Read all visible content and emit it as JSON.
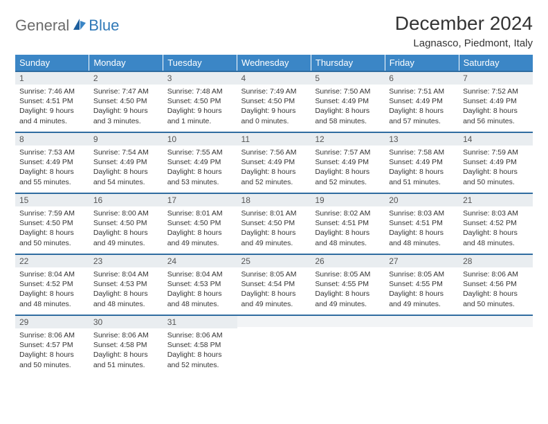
{
  "brand": {
    "general": "General",
    "blue": "Blue"
  },
  "title": "December 2024",
  "location": "Lagnasco, Piedmont, Italy",
  "colors": {
    "header_bg": "#3b86c6",
    "header_text": "#ffffff",
    "daynum_bg": "#e9edf0",
    "daynum_border": "#2f6ca0",
    "body_text": "#333333",
    "logo_blue": "#2f78b7",
    "logo_gray": "#6b6b6b"
  },
  "weekdays": [
    "Sunday",
    "Monday",
    "Tuesday",
    "Wednesday",
    "Thursday",
    "Friday",
    "Saturday"
  ],
  "weeks": [
    [
      {
        "n": "1",
        "sr": "7:46 AM",
        "ss": "4:51 PM",
        "dl": "9 hours and 4 minutes."
      },
      {
        "n": "2",
        "sr": "7:47 AM",
        "ss": "4:50 PM",
        "dl": "9 hours and 3 minutes."
      },
      {
        "n": "3",
        "sr": "7:48 AM",
        "ss": "4:50 PM",
        "dl": "9 hours and 1 minute."
      },
      {
        "n": "4",
        "sr": "7:49 AM",
        "ss": "4:50 PM",
        "dl": "9 hours and 0 minutes."
      },
      {
        "n": "5",
        "sr": "7:50 AM",
        "ss": "4:49 PM",
        "dl": "8 hours and 58 minutes."
      },
      {
        "n": "6",
        "sr": "7:51 AM",
        "ss": "4:49 PM",
        "dl": "8 hours and 57 minutes."
      },
      {
        "n": "7",
        "sr": "7:52 AM",
        "ss": "4:49 PM",
        "dl": "8 hours and 56 minutes."
      }
    ],
    [
      {
        "n": "8",
        "sr": "7:53 AM",
        "ss": "4:49 PM",
        "dl": "8 hours and 55 minutes."
      },
      {
        "n": "9",
        "sr": "7:54 AM",
        "ss": "4:49 PM",
        "dl": "8 hours and 54 minutes."
      },
      {
        "n": "10",
        "sr": "7:55 AM",
        "ss": "4:49 PM",
        "dl": "8 hours and 53 minutes."
      },
      {
        "n": "11",
        "sr": "7:56 AM",
        "ss": "4:49 PM",
        "dl": "8 hours and 52 minutes."
      },
      {
        "n": "12",
        "sr": "7:57 AM",
        "ss": "4:49 PM",
        "dl": "8 hours and 52 minutes."
      },
      {
        "n": "13",
        "sr": "7:58 AM",
        "ss": "4:49 PM",
        "dl": "8 hours and 51 minutes."
      },
      {
        "n": "14",
        "sr": "7:59 AM",
        "ss": "4:49 PM",
        "dl": "8 hours and 50 minutes."
      }
    ],
    [
      {
        "n": "15",
        "sr": "7:59 AM",
        "ss": "4:50 PM",
        "dl": "8 hours and 50 minutes."
      },
      {
        "n": "16",
        "sr": "8:00 AM",
        "ss": "4:50 PM",
        "dl": "8 hours and 49 minutes."
      },
      {
        "n": "17",
        "sr": "8:01 AM",
        "ss": "4:50 PM",
        "dl": "8 hours and 49 minutes."
      },
      {
        "n": "18",
        "sr": "8:01 AM",
        "ss": "4:50 PM",
        "dl": "8 hours and 49 minutes."
      },
      {
        "n": "19",
        "sr": "8:02 AM",
        "ss": "4:51 PM",
        "dl": "8 hours and 48 minutes."
      },
      {
        "n": "20",
        "sr": "8:03 AM",
        "ss": "4:51 PM",
        "dl": "8 hours and 48 minutes."
      },
      {
        "n": "21",
        "sr": "8:03 AM",
        "ss": "4:52 PM",
        "dl": "8 hours and 48 minutes."
      }
    ],
    [
      {
        "n": "22",
        "sr": "8:04 AM",
        "ss": "4:52 PM",
        "dl": "8 hours and 48 minutes."
      },
      {
        "n": "23",
        "sr": "8:04 AM",
        "ss": "4:53 PM",
        "dl": "8 hours and 48 minutes."
      },
      {
        "n": "24",
        "sr": "8:04 AM",
        "ss": "4:53 PM",
        "dl": "8 hours and 48 minutes."
      },
      {
        "n": "25",
        "sr": "8:05 AM",
        "ss": "4:54 PM",
        "dl": "8 hours and 49 minutes."
      },
      {
        "n": "26",
        "sr": "8:05 AM",
        "ss": "4:55 PM",
        "dl": "8 hours and 49 minutes."
      },
      {
        "n": "27",
        "sr": "8:05 AM",
        "ss": "4:55 PM",
        "dl": "8 hours and 49 minutes."
      },
      {
        "n": "28",
        "sr": "8:06 AM",
        "ss": "4:56 PM",
        "dl": "8 hours and 50 minutes."
      }
    ],
    [
      {
        "n": "29",
        "sr": "8:06 AM",
        "ss": "4:57 PM",
        "dl": "8 hours and 50 minutes."
      },
      {
        "n": "30",
        "sr": "8:06 AM",
        "ss": "4:58 PM",
        "dl": "8 hours and 51 minutes."
      },
      {
        "n": "31",
        "sr": "8:06 AM",
        "ss": "4:58 PM",
        "dl": "8 hours and 52 minutes."
      },
      null,
      null,
      null,
      null
    ]
  ],
  "labels": {
    "sunrise": "Sunrise:",
    "sunset": "Sunset:",
    "daylight": "Daylight:"
  }
}
